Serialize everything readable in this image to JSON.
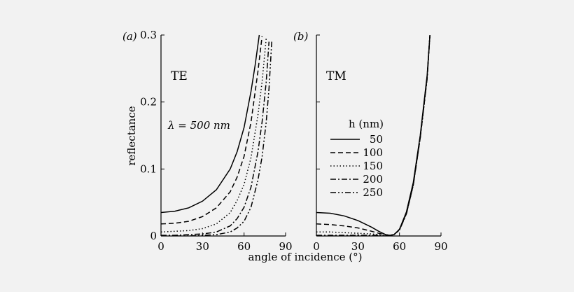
{
  "xlabel": "angle of incidence (°)",
  "ylabel": "reflectance",
  "lambda_label": "λ = 500 nm",
  "legend_title": "h (nm)",
  "chart_data": [
    {
      "type": "line",
      "panel_label": "(a)",
      "mode_label": "TE",
      "xlim": [
        0,
        90
      ],
      "ylim": [
        0,
        0.3
      ],
      "x_ticks": [
        0,
        30,
        60,
        90
      ],
      "y_ticks": [
        0,
        0.1,
        0.2,
        0.3
      ],
      "y_tick_labels": [
        "0",
        "0.1",
        "0.2",
        "0.3"
      ],
      "grid": false,
      "series": [
        {
          "name": "50",
          "dash": "solid",
          "x": [
            0,
            10,
            20,
            30,
            40,
            50,
            55,
            60,
            65,
            68,
            71
          ],
          "y": [
            0.035,
            0.037,
            0.042,
            0.052,
            0.069,
            0.1,
            0.126,
            0.162,
            0.216,
            0.255,
            0.3
          ]
        },
        {
          "name": "100",
          "dash": "dash",
          "x": [
            0,
            10,
            20,
            30,
            40,
            50,
            55,
            60,
            65,
            70,
            73
          ],
          "y": [
            0.018,
            0.019,
            0.022,
            0.029,
            0.042,
            0.066,
            0.088,
            0.119,
            0.17,
            0.245,
            0.298
          ]
        },
        {
          "name": "150",
          "dash": "dot",
          "x": [
            0,
            10,
            20,
            30,
            40,
            50,
            55,
            60,
            65,
            70,
            73,
            76
          ],
          "y": [
            0.006,
            0.007,
            0.008,
            0.011,
            0.018,
            0.035,
            0.053,
            0.077,
            0.117,
            0.18,
            0.23,
            0.295
          ]
        },
        {
          "name": "200",
          "dash": "dashdot",
          "x": [
            0,
            10,
            20,
            30,
            40,
            50,
            55,
            60,
            65,
            70,
            73,
            76,
            78
          ],
          "y": [
            0.001,
            0.001,
            0.002,
            0.003,
            0.006,
            0.015,
            0.026,
            0.043,
            0.073,
            0.125,
            0.17,
            0.23,
            0.29
          ]
        },
        {
          "name": "250",
          "dash": "dashdotdot",
          "x": [
            0,
            10,
            20,
            30,
            40,
            50,
            55,
            60,
            65,
            70,
            73,
            76,
            78,
            80
          ],
          "y": [
            0.0,
            0.0,
            0.0,
            0.001,
            0.002,
            0.006,
            0.012,
            0.022,
            0.043,
            0.083,
            0.118,
            0.17,
            0.22,
            0.29
          ]
        }
      ]
    },
    {
      "type": "line",
      "panel_label": "(b)",
      "mode_label": "TM",
      "xlim": [
        0,
        90
      ],
      "ylim": [
        0,
        0.3
      ],
      "x_ticks": [
        0,
        30,
        60,
        90
      ],
      "grid": false,
      "legend": "center-left",
      "series": [
        {
          "name": "50",
          "dash": "solid",
          "x": [
            0,
            10,
            20,
            30,
            40,
            45,
            50,
            53,
            56,
            60,
            65,
            70,
            75,
            80,
            82
          ],
          "y": [
            0.035,
            0.034,
            0.03,
            0.023,
            0.013,
            0.007,
            0.002,
            0.001,
            0.002,
            0.01,
            0.036,
            0.08,
            0.15,
            0.24,
            0.3
          ]
        },
        {
          "name": "100",
          "dash": "dash",
          "x": [
            0,
            10,
            20,
            30,
            40,
            45,
            50,
            53,
            56,
            60,
            65,
            70,
            75,
            80,
            82
          ],
          "y": [
            0.018,
            0.017,
            0.015,
            0.012,
            0.007,
            0.004,
            0.002,
            0.001,
            0.002,
            0.01,
            0.035,
            0.078,
            0.148,
            0.238,
            0.3
          ]
        },
        {
          "name": "150",
          "dash": "dot",
          "x": [
            0,
            10,
            20,
            30,
            40,
            45,
            50,
            53,
            56,
            60,
            65,
            70,
            75,
            80,
            82
          ],
          "y": [
            0.006,
            0.006,
            0.005,
            0.004,
            0.003,
            0.002,
            0.001,
            0.001,
            0.002,
            0.009,
            0.034,
            0.077,
            0.147,
            0.236,
            0.3
          ]
        },
        {
          "name": "200",
          "dash": "dashdot",
          "x": [
            0,
            10,
            20,
            30,
            40,
            45,
            50,
            53,
            56,
            60,
            65,
            70,
            75,
            80,
            82
          ],
          "y": [
            0.001,
            0.001,
            0.001,
            0.001,
            0.001,
            0.001,
            0.0,
            0.001,
            0.002,
            0.009,
            0.033,
            0.076,
            0.146,
            0.235,
            0.3
          ]
        },
        {
          "name": "250",
          "dash": "dashdotdot",
          "x": [
            0,
            10,
            20,
            30,
            40,
            45,
            50,
            53,
            56,
            60,
            65,
            70,
            75,
            80,
            82
          ],
          "y": [
            0.0,
            0.0,
            0.0,
            0.0,
            0.0,
            0.0,
            0.0,
            0.001,
            0.002,
            0.009,
            0.033,
            0.076,
            0.146,
            0.235,
            0.3
          ]
        }
      ]
    }
  ]
}
